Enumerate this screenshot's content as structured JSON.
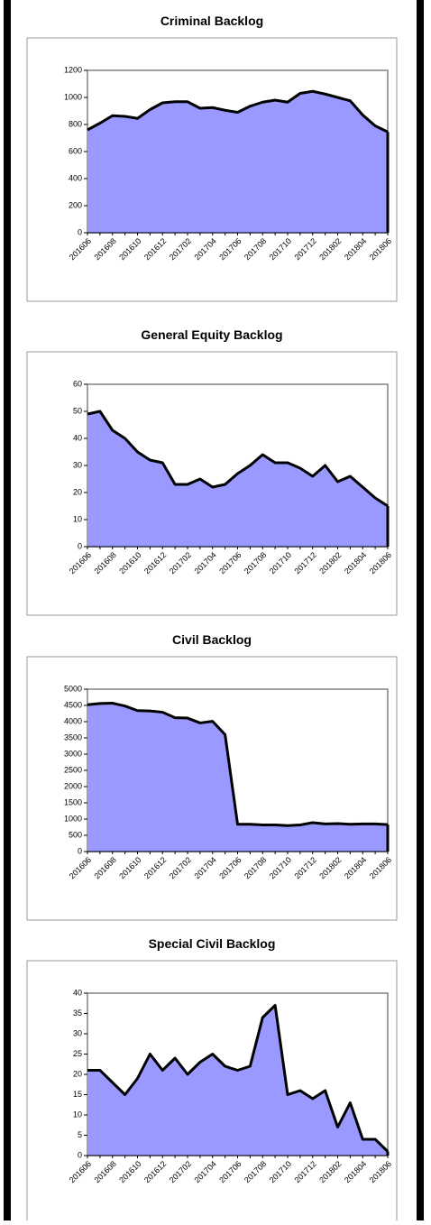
{
  "chart_data": [
    {
      "type": "area",
      "title": "Criminal Backlog",
      "categories": [
        "201606",
        null,
        "201608",
        null,
        "201610",
        null,
        "201612",
        null,
        "201702",
        null,
        "201704",
        null,
        "201706",
        null,
        "201708",
        null,
        "201710",
        null,
        "201712",
        null,
        "201802",
        null,
        "201804",
        null,
        "201806"
      ],
      "values": [
        760,
        810,
        865,
        860,
        845,
        910,
        960,
        968,
        968,
        920,
        925,
        905,
        890,
        935,
        965,
        980,
        965,
        1030,
        1045,
        1025,
        1000,
        975,
        870,
        790,
        745
      ],
      "color": "#9999ff",
      "ylim": [
        0,
        1200
      ],
      "yticks": [
        0,
        200,
        400,
        600,
        800,
        1000,
        1200
      ]
    },
    {
      "type": "area",
      "title": "General Equity Backlog",
      "categories": [
        "201606",
        null,
        "201608",
        null,
        "201610",
        null,
        "201612",
        null,
        "201702",
        null,
        "201704",
        null,
        "201706",
        null,
        "201708",
        null,
        "201710",
        null,
        "201712",
        null,
        "201802",
        null,
        "201804",
        null,
        "201806"
      ],
      "values": [
        49,
        50,
        43,
        40,
        35,
        32,
        31,
        23,
        23,
        25,
        22,
        23,
        27,
        30,
        34,
        31,
        31,
        29,
        26,
        30,
        24,
        26,
        22,
        18,
        15
      ],
      "color": "#9999ff",
      "ylim": [
        0,
        60
      ],
      "yticks": [
        0,
        10,
        20,
        30,
        40,
        50,
        60
      ]
    },
    {
      "type": "area",
      "title": "Civil Backlog",
      "categories": [
        "201606",
        null,
        "201608",
        null,
        "201610",
        null,
        "201612",
        null,
        "201702",
        null,
        "201704",
        null,
        "201706",
        null,
        "201708",
        null,
        "201710",
        null,
        "201712",
        null,
        "201802",
        null,
        "201804",
        null,
        "201806"
      ],
      "values": [
        4520,
        4560,
        4570,
        4480,
        4340,
        4330,
        4290,
        4120,
        4110,
        3960,
        4010,
        3600,
        840,
        840,
        820,
        820,
        800,
        820,
        890,
        850,
        860,
        840,
        850,
        850,
        830
      ],
      "color": "#9999ff",
      "ylim": [
        0,
        5000
      ],
      "yticks": [
        0,
        500,
        1000,
        1500,
        2000,
        2500,
        3000,
        3500,
        4000,
        4500,
        5000
      ]
    },
    {
      "type": "area",
      "title": "Special Civil Backlog",
      "categories": [
        "201606",
        null,
        "201608",
        null,
        "201610",
        null,
        "201612",
        null,
        "201702",
        null,
        "201704",
        null,
        "201706",
        null,
        "201708",
        null,
        "201710",
        null,
        "201712",
        null,
        "201802",
        null,
        "201804",
        null,
        "201806"
      ],
      "values": [
        21,
        21,
        18,
        15,
        19,
        25,
        21,
        24,
        20,
        23,
        25,
        22,
        21,
        22,
        34,
        37,
        15,
        16,
        14,
        16,
        7,
        13,
        4,
        4,
        1
      ],
      "color": "#9999ff",
      "ylim": [
        0,
        40
      ],
      "yticks": [
        0,
        5,
        10,
        15,
        20,
        25,
        30,
        35,
        40
      ]
    }
  ]
}
